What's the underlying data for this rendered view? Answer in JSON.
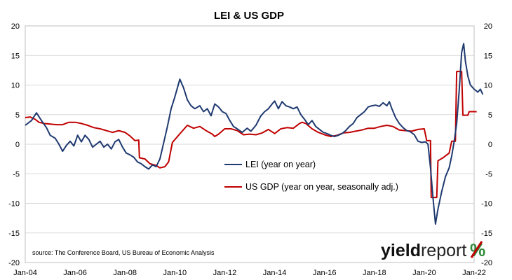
{
  "chart_data": {
    "type": "line",
    "title": "LEI & US GDP",
    "xlabel": "",
    "ylabel": "",
    "ylim": [
      -20,
      20
    ],
    "yticks": [
      -20,
      -15,
      -10,
      -5,
      0,
      5,
      10,
      15,
      20
    ],
    "x_tick_labels": [
      "Jan-04",
      "Jan-06",
      "Jan-08",
      "Jan-10",
      "Jan-12",
      "Jan-14",
      "Jan-16",
      "Jan-18",
      "Jan-20",
      "Jan-22"
    ],
    "x_tick_years": [
      2004,
      2006,
      2008,
      2010,
      2012,
      2014,
      2016,
      2018,
      2020,
      2022
    ],
    "xlim": [
      2004,
      2022
    ],
    "grid": "horizontal",
    "legend_position": "center",
    "series": [
      {
        "name": "LEI (year on year)",
        "color": "#1f3a70",
        "points": [
          [
            2004.0,
            3.2
          ],
          [
            2004.25,
            4.0
          ],
          [
            2004.45,
            5.3
          ],
          [
            2004.65,
            4.0
          ],
          [
            2004.85,
            2.8
          ],
          [
            2005.0,
            1.5
          ],
          [
            2005.2,
            1.0
          ],
          [
            2005.35,
            0.0
          ],
          [
            2005.5,
            -1.2
          ],
          [
            2005.65,
            -0.2
          ],
          [
            2005.8,
            0.5
          ],
          [
            2005.95,
            -0.3
          ],
          [
            2006.1,
            1.5
          ],
          [
            2006.25,
            0.4
          ],
          [
            2006.4,
            1.5
          ],
          [
            2006.55,
            0.8
          ],
          [
            2006.7,
            -0.5
          ],
          [
            2006.85,
            0.0
          ],
          [
            2007.0,
            0.5
          ],
          [
            2007.15,
            -0.5
          ],
          [
            2007.3,
            0.0
          ],
          [
            2007.45,
            -0.8
          ],
          [
            2007.6,
            0.4
          ],
          [
            2007.75,
            0.8
          ],
          [
            2007.9,
            -0.5
          ],
          [
            2008.05,
            -1.5
          ],
          [
            2008.2,
            -1.8
          ],
          [
            2008.35,
            -2.2
          ],
          [
            2008.5,
            -3.0
          ],
          [
            2008.65,
            -3.3
          ],
          [
            2008.8,
            -3.8
          ],
          [
            2008.95,
            -4.2
          ],
          [
            2009.1,
            -3.5
          ],
          [
            2009.25,
            -3.8
          ],
          [
            2009.4,
            -2.5
          ],
          [
            2009.55,
            0.2
          ],
          [
            2009.7,
            3.0
          ],
          [
            2009.85,
            6.0
          ],
          [
            2010.0,
            8.0
          ],
          [
            2010.1,
            9.5
          ],
          [
            2010.2,
            11.0
          ],
          [
            2010.35,
            9.5
          ],
          [
            2010.5,
            7.5
          ],
          [
            2010.65,
            6.5
          ],
          [
            2010.8,
            6.0
          ],
          [
            2011.0,
            6.5
          ],
          [
            2011.15,
            5.5
          ],
          [
            2011.3,
            6.0
          ],
          [
            2011.45,
            4.8
          ],
          [
            2011.6,
            6.8
          ],
          [
            2011.75,
            6.3
          ],
          [
            2011.9,
            5.5
          ],
          [
            2012.05,
            5.2
          ],
          [
            2012.2,
            4.0
          ],
          [
            2012.35,
            3.0
          ],
          [
            2012.5,
            2.6
          ],
          [
            2012.7,
            2.0
          ],
          [
            2012.9,
            2.7
          ],
          [
            2013.05,
            2.2
          ],
          [
            2013.25,
            3.2
          ],
          [
            2013.45,
            4.8
          ],
          [
            2013.6,
            5.5
          ],
          [
            2013.75,
            6.0
          ],
          [
            2013.9,
            6.8
          ],
          [
            2014.0,
            7.3
          ],
          [
            2014.15,
            6.0
          ],
          [
            2014.3,
            7.2
          ],
          [
            2014.45,
            6.5
          ],
          [
            2014.6,
            6.3
          ],
          [
            2014.75,
            6.0
          ],
          [
            2014.9,
            6.3
          ],
          [
            2015.05,
            5.0
          ],
          [
            2015.2,
            4.2
          ],
          [
            2015.35,
            3.3
          ],
          [
            2015.5,
            4.0
          ],
          [
            2015.65,
            3.0
          ],
          [
            2015.8,
            2.5
          ],
          [
            2015.95,
            2.0
          ],
          [
            2016.1,
            1.8
          ],
          [
            2016.25,
            1.5
          ],
          [
            2016.4,
            1.3
          ],
          [
            2016.55,
            1.5
          ],
          [
            2016.7,
            1.8
          ],
          [
            2016.85,
            2.3
          ],
          [
            2017.0,
            3.0
          ],
          [
            2017.15,
            3.5
          ],
          [
            2017.3,
            4.5
          ],
          [
            2017.45,
            5.0
          ],
          [
            2017.6,
            5.5
          ],
          [
            2017.75,
            6.3
          ],
          [
            2017.9,
            6.5
          ],
          [
            2018.05,
            6.6
          ],
          [
            2018.2,
            6.4
          ],
          [
            2018.35,
            7.0
          ],
          [
            2018.5,
            6.5
          ],
          [
            2018.6,
            7.2
          ],
          [
            2018.7,
            6.0
          ],
          [
            2018.85,
            4.5
          ],
          [
            2019.0,
            3.5
          ],
          [
            2019.15,
            2.8
          ],
          [
            2019.3,
            2.3
          ],
          [
            2019.45,
            2.1
          ],
          [
            2019.6,
            1.6
          ],
          [
            2019.75,
            0.5
          ],
          [
            2019.9,
            0.3
          ],
          [
            2020.05,
            0.4
          ],
          [
            2020.15,
            0.0
          ],
          [
            2020.25,
            -4.0
          ],
          [
            2020.35,
            -9.0
          ],
          [
            2020.45,
            -13.5
          ],
          [
            2020.55,
            -11.0
          ],
          [
            2020.7,
            -8.0
          ],
          [
            2020.85,
            -5.5
          ],
          [
            2021.0,
            -4.0
          ],
          [
            2021.1,
            -2.0
          ],
          [
            2021.2,
            0.5
          ],
          [
            2021.3,
            3.5
          ],
          [
            2021.4,
            9.0
          ],
          [
            2021.5,
            15.5
          ],
          [
            2021.58,
            17.0
          ],
          [
            2021.65,
            14.0
          ],
          [
            2021.75,
            11.5
          ],
          [
            2021.85,
            10.0
          ],
          [
            2022.0,
            9.3
          ],
          [
            2022.15,
            8.8
          ],
          [
            2022.25,
            9.3
          ],
          [
            2022.35,
            8.4
          ]
        ]
      },
      {
        "name": "US GDP (year on year, seasonally adj.)",
        "color": "#c00000",
        "points": [
          [
            2004.0,
            4.5
          ],
          [
            2004.2,
            4.6
          ],
          [
            2004.4,
            4.2
          ],
          [
            2004.55,
            3.7
          ],
          [
            2004.75,
            3.5
          ],
          [
            2005.0,
            3.4
          ],
          [
            2005.25,
            3.3
          ],
          [
            2005.5,
            3.3
          ],
          [
            2005.75,
            3.7
          ],
          [
            2006.0,
            3.7
          ],
          [
            2006.25,
            3.5
          ],
          [
            2006.5,
            3.2
          ],
          [
            2006.75,
            2.8
          ],
          [
            2007.0,
            2.6
          ],
          [
            2007.25,
            2.3
          ],
          [
            2007.5,
            2.0
          ],
          [
            2007.75,
            2.3
          ],
          [
            2008.0,
            2.0
          ],
          [
            2008.2,
            1.4
          ],
          [
            2008.4,
            0.6
          ],
          [
            2008.55,
            0.7
          ],
          [
            2008.58,
            -2.3
          ],
          [
            2008.8,
            -2.5
          ],
          [
            2009.0,
            -3.3
          ],
          [
            2009.25,
            -3.6
          ],
          [
            2009.4,
            -4.0
          ],
          [
            2009.6,
            -3.8
          ],
          [
            2009.75,
            -3.0
          ],
          [
            2009.9,
            0.3
          ],
          [
            2010.25,
            2.0
          ],
          [
            2010.5,
            3.2
          ],
          [
            2010.75,
            2.7
          ],
          [
            2011.0,
            3.0
          ],
          [
            2011.25,
            2.3
          ],
          [
            2011.5,
            1.7
          ],
          [
            2011.6,
            1.3
          ],
          [
            2011.75,
            1.7
          ],
          [
            2012.0,
            2.6
          ],
          [
            2012.25,
            2.6
          ],
          [
            2012.5,
            2.3
          ],
          [
            2012.75,
            1.6
          ],
          [
            2013.0,
            1.7
          ],
          [
            2013.25,
            1.6
          ],
          [
            2013.5,
            1.9
          ],
          [
            2013.75,
            2.5
          ],
          [
            2014.0,
            1.8
          ],
          [
            2014.25,
            2.6
          ],
          [
            2014.5,
            2.8
          ],
          [
            2014.75,
            2.7
          ],
          [
            2015.0,
            3.5
          ],
          [
            2015.1,
            3.7
          ],
          [
            2015.25,
            3.5
          ],
          [
            2015.5,
            2.6
          ],
          [
            2015.75,
            2.0
          ],
          [
            2016.0,
            1.6
          ],
          [
            2016.25,
            1.3
          ],
          [
            2016.5,
            1.5
          ],
          [
            2016.75,
            1.9
          ],
          [
            2017.0,
            2.0
          ],
          [
            2017.25,
            2.2
          ],
          [
            2017.5,
            2.4
          ],
          [
            2017.75,
            2.7
          ],
          [
            2018.0,
            2.7
          ],
          [
            2018.25,
            3.0
          ],
          [
            2018.5,
            3.2
          ],
          [
            2018.75,
            3.0
          ],
          [
            2019.0,
            2.4
          ],
          [
            2019.25,
            2.3
          ],
          [
            2019.5,
            2.2
          ],
          [
            2019.75,
            2.5
          ],
          [
            2020.0,
            2.6
          ],
          [
            2020.1,
            0.6
          ],
          [
            2020.25,
            0.6
          ],
          [
            2020.28,
            -9.0
          ],
          [
            2020.5,
            -9.0
          ],
          [
            2020.55,
            -2.8
          ],
          [
            2020.75,
            -2.3
          ],
          [
            2021.0,
            -1.5
          ],
          [
            2021.1,
            0.5
          ],
          [
            2021.25,
            0.5
          ],
          [
            2021.3,
            12.3
          ],
          [
            2021.5,
            12.3
          ],
          [
            2021.55,
            4.9
          ],
          [
            2021.75,
            4.9
          ],
          [
            2021.8,
            5.5
          ],
          [
            2022.0,
            5.5
          ],
          [
            2022.1,
            5.5
          ]
        ]
      }
    ]
  },
  "source_note": "source: The Conference Board, US Bureau of Economic Analysis",
  "brand": {
    "name_bold": "yield",
    "name_light": "report",
    "symbol": "%"
  }
}
